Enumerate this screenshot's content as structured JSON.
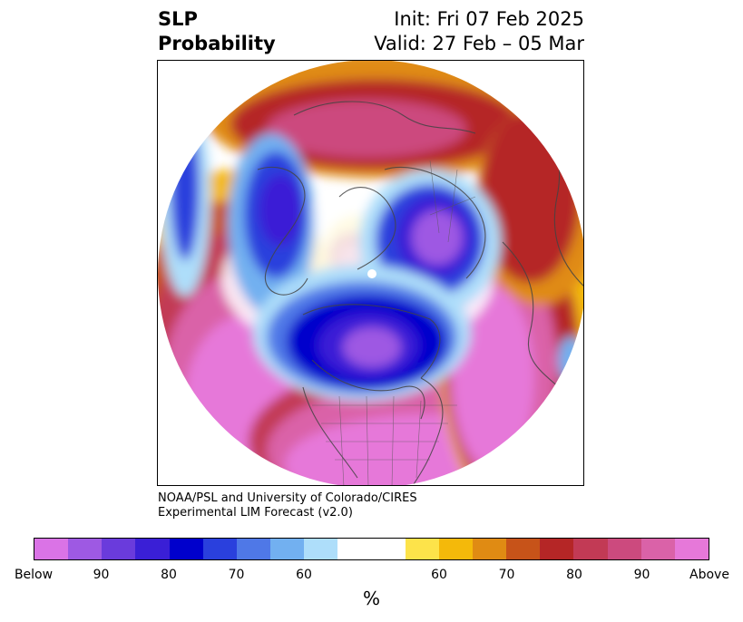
{
  "header": {
    "title_line1": "SLP",
    "title_line2": "Probability",
    "init": "Init: Fri 07 Feb 2025",
    "valid": "Valid: 27 Feb – 05 Mar"
  },
  "credit": {
    "line1": "NOAA/PSL and University of Colorado/CIRES",
    "line2": "Experimental LIM Forecast (v2.0)"
  },
  "map": {
    "projection": "north polar stereographic",
    "features": [
      "coastlines",
      "country borders",
      "US state borders"
    ],
    "below_colors": [
      "#da73e6",
      "#9e59e3",
      "#6a3bdc",
      "#3a1fd6",
      "#0000cc",
      "#2a40dd",
      "#4f78e7",
      "#72b0f0",
      "#aedefa"
    ],
    "neutral_color": "#ffffff",
    "above_colors": [
      "#fde34a",
      "#f4b90a",
      "#e08b13",
      "#c75319",
      "#b52626",
      "#c23a55",
      "#cc4a7e",
      "#da62a8",
      "#e678d9"
    ]
  },
  "colorbar": {
    "unit": "%",
    "ticks": [
      "Below",
      "90",
      "80",
      "70",
      "60",
      "60",
      "70",
      "80",
      "90",
      "Above"
    ]
  }
}
